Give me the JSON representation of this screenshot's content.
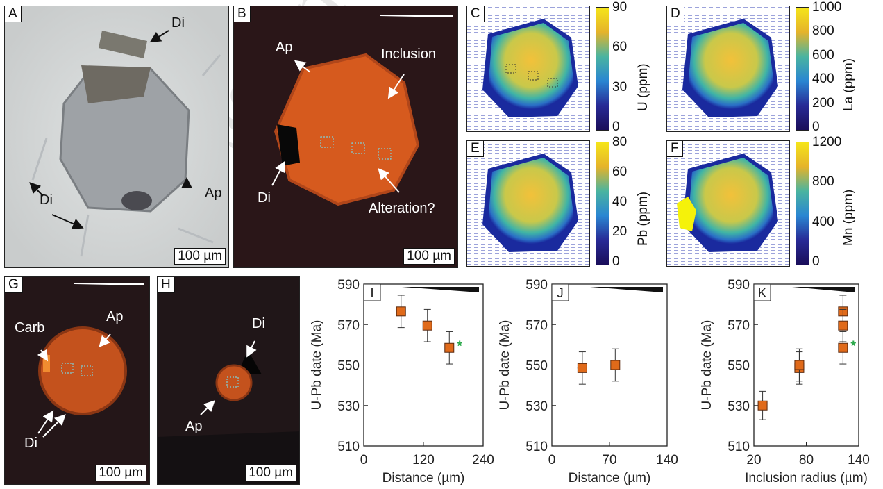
{
  "panel_labels": [
    "A",
    "B",
    "C",
    "D",
    "E",
    "F",
    "G",
    "H",
    "I",
    "J",
    "K"
  ],
  "scale_label": "100 µm",
  "annotations": {
    "A_di_top": "Di",
    "A_di_bottom": "Di",
    "A_ap": "Ap",
    "B_ap": "Ap",
    "B_inclusion": "Inclusion",
    "B_di": "Di",
    "B_alteration": "Alteration?",
    "G_carb": "Carb",
    "G_ap": "Ap",
    "G_di": "Di",
    "H_di": "Di",
    "H_ap": "Ap"
  },
  "colorbars": {
    "C": {
      "title": "U (ppm)",
      "ticks": [
        "90",
        "60",
        "30",
        "0"
      ]
    },
    "D": {
      "title": "La (ppm)",
      "ticks": [
        "1000",
        "800",
        "600",
        "400",
        "200",
        "0"
      ]
    },
    "E": {
      "title": "Pb (ppm)",
      "ticks": [
        "80",
        "60",
        "40",
        "20",
        "0"
      ]
    },
    "F": {
      "title": "Mn (ppm)",
      "ticks": [
        "1200",
        "800",
        "400",
        "0"
      ]
    }
  },
  "colors": {
    "marker": "#e06a1a",
    "star": "#2aa84a",
    "cl_background": "#2a1618",
    "cl_grain": "#d65a1e"
  },
  "chart_data": [
    {
      "type": "scatter",
      "panel": "I",
      "xlabel": "Distance (µm)",
      "ylabel": "U-Pb date (Ma)",
      "xlim": [
        0,
        240
      ],
      "ylim": [
        510,
        590
      ],
      "xticks": [
        "0",
        "120",
        "240"
      ],
      "yticks": [
        "510",
        "530",
        "550",
        "570",
        "590"
      ],
      "x": [
        75,
        128,
        172
      ],
      "y": [
        576.5,
        569.5,
        558.5
      ],
      "yerr": [
        8,
        8,
        8
      ],
      "xerr": [
        8,
        8,
        8
      ],
      "star_after_index": 2,
      "star": "*"
    },
    {
      "type": "scatter",
      "panel": "J",
      "xlabel": "Distance (µm)",
      "ylabel": "U-Pb date (Ma)",
      "xlim": [
        0,
        140
      ],
      "ylim": [
        510,
        590
      ],
      "xticks": [
        "0",
        "70",
        "140"
      ],
      "yticks": [
        "510",
        "530",
        "550",
        "570",
        "590"
      ],
      "x": [
        37,
        77
      ],
      "y": [
        548.5,
        550
      ],
      "yerr": [
        8,
        8
      ],
      "xerr": [
        6,
        6
      ]
    },
    {
      "type": "scatter",
      "panel": "K",
      "xlabel": "Inclusion radius (µm)",
      "ylabel": "U-Pb date (Ma)",
      "xlim": [
        20,
        140
      ],
      "ylim": [
        510,
        590
      ],
      "xticks": [
        "20",
        "80",
        "140"
      ],
      "yticks": [
        "510",
        "530",
        "550",
        "570",
        "590"
      ],
      "x": [
        30,
        72,
        72,
        122,
        122,
        122
      ],
      "y": [
        530,
        548.5,
        550,
        576.5,
        569.5,
        558.5
      ],
      "yerr": [
        7,
        8,
        8,
        8,
        8,
        8
      ],
      "xerr": [
        0,
        0,
        0,
        0,
        0,
        0
      ],
      "star_after_index": 5,
      "star": "*"
    }
  ]
}
